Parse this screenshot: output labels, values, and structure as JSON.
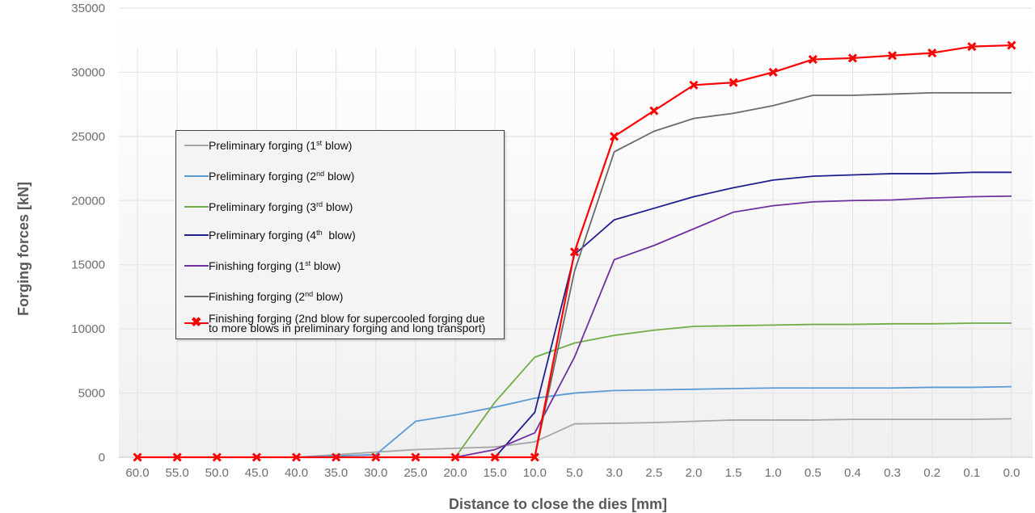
{
  "chart_data": {
    "type": "line",
    "title": "",
    "xlabel": "Distance to close the dies [mm]",
    "ylabel": "Forging forces [kN]",
    "ylim": [
      0,
      35000
    ],
    "yticks": [
      0,
      5000,
      10000,
      15000,
      20000,
      25000,
      30000,
      35000
    ],
    "grid": true,
    "legend_position": "upper-left (inside plot)",
    "categories": [
      "60.0",
      "55.0",
      "50.0",
      "45.0",
      "40.0",
      "35.0",
      "30.0",
      "25.0",
      "20.0",
      "15.0",
      "10.0",
      "5.0",
      "3.0",
      "2.5",
      "2.0",
      "1.5",
      "1.0",
      "0.5",
      "0.4",
      "0.3",
      "0.2",
      "0.1",
      "0.0"
    ],
    "series": [
      {
        "name": "Preliminary forging (1st blow)",
        "color": "#a6a6a6",
        "marker": "none",
        "values": [
          null,
          null,
          null,
          null,
          0,
          200,
          400,
          600,
          700,
          800,
          1200,
          2600,
          2650,
          2700,
          2800,
          2900,
          2900,
          2900,
          2950,
          2950,
          2950,
          2950,
          3000
        ]
      },
      {
        "name": "Preliminary forging (2nd blow)",
        "color": "#5b9bd5",
        "marker": "none",
        "values": [
          null,
          null,
          null,
          null,
          0,
          100,
          200,
          2800,
          3300,
          3900,
          4600,
          5000,
          5200,
          5250,
          5300,
          5350,
          5400,
          5400,
          5400,
          5400,
          5450,
          5450,
          5500
        ]
      },
      {
        "name": "Preliminary forging (3rd blow)",
        "color": "#70ad47",
        "marker": "none",
        "values": [
          null,
          null,
          null,
          null,
          null,
          null,
          null,
          null,
          0,
          4300,
          7800,
          8900,
          9500,
          9900,
          10200,
          10250,
          10300,
          10350,
          10350,
          10400,
          10400,
          10450,
          10450
        ]
      },
      {
        "name": "Preliminary forging (4th blow)",
        "color": "#1f1f8f",
        "marker": "none",
        "values": [
          null,
          null,
          null,
          null,
          null,
          null,
          null,
          null,
          null,
          0,
          3500,
          15800,
          18500,
          19400,
          20300,
          21000,
          21600,
          21900,
          22000,
          22100,
          22100,
          22200,
          22200
        ]
      },
      {
        "name": "Finishing forging (1st blow)",
        "color": "#7030a0",
        "marker": "none",
        "values": [
          null,
          null,
          null,
          null,
          null,
          null,
          null,
          null,
          0,
          600,
          1900,
          7800,
          15400,
          16500,
          17800,
          19100,
          19600,
          19900,
          20000,
          20050,
          20200,
          20300,
          20350
        ]
      },
      {
        "name": "Finishing forging (2nd blow)",
        "color": "#6b6b6b",
        "marker": "none",
        "values": [
          null,
          null,
          null,
          null,
          null,
          null,
          null,
          null,
          null,
          null,
          0,
          14500,
          23800,
          25400,
          26400,
          26800,
          27400,
          28200,
          28200,
          28300,
          28400,
          28400,
          28400
        ]
      },
      {
        "name": "Finishing forging (2nd blow for supercooled forging due to more blows in preliminary forging and long transport)",
        "color": "#ff0000",
        "marker": "x",
        "values": [
          0,
          0,
          0,
          0,
          0,
          0,
          0,
          0,
          0,
          0,
          0,
          16000,
          25000,
          27000,
          29000,
          29200,
          30000,
          31000,
          31100,
          31300,
          31500,
          32000,
          32100
        ]
      }
    ]
  },
  "legend": {
    "items": [
      {
        "pre": "Preliminary forging (1",
        "sup": "st",
        "post": " blow)",
        "color": "#a6a6a6",
        "marker": false
      },
      {
        "pre": "Preliminary forging (2",
        "sup": "nd",
        "post": " blow)",
        "color": "#5b9bd5",
        "marker": false
      },
      {
        "pre": "Preliminary forging (3",
        "sup": "rd",
        "post": " blow)",
        "color": "#70ad47",
        "marker": false
      },
      {
        "pre": "Preliminary forging (4",
        "sup": "th",
        "post": "  blow)",
        "color": "#1f1f8f",
        "marker": false
      },
      {
        "pre": "Finishing forging (1",
        "sup": "st",
        "post": " blow)",
        "color": "#7030a0",
        "marker": false
      },
      {
        "pre": "Finishing forging (2",
        "sup": "nd",
        "post": " blow)",
        "color": "#6b6b6b",
        "marker": false
      },
      {
        "line1": "Finishing forging (2nd blow for supercooled forging due",
        "line2": "to more blows in preliminary forging and long transport)",
        "color": "#ff0000",
        "marker": true,
        "marker_glyph": "✖"
      }
    ]
  },
  "axes": {
    "x_title": "Distance to close the dies [mm]",
    "y_title": "Forging forces [kN]"
  }
}
